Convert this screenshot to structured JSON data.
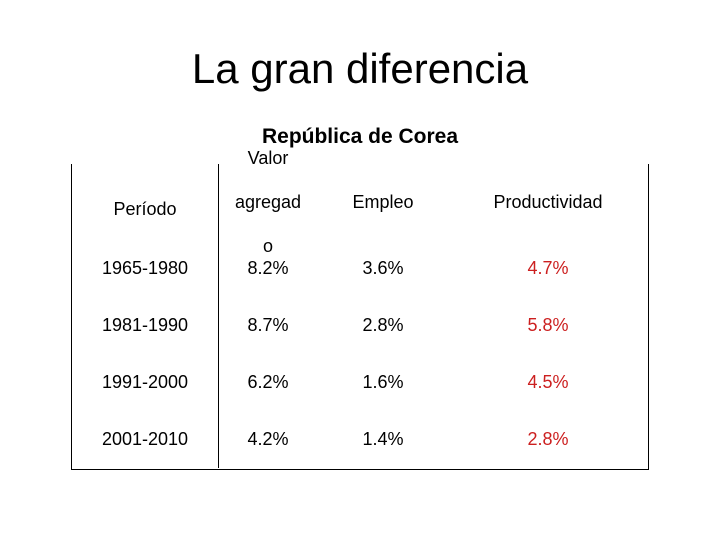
{
  "slide": {
    "title": "La gran diferencia",
    "subtitle": "República de Corea"
  },
  "table": {
    "headers": [
      "Período",
      "Valor agregad o",
      "Empleo",
      "Productividad"
    ],
    "rows": [
      [
        "1965-1980",
        "8.2%",
        "3.6%",
        "4.7%"
      ],
      [
        "1981-1990",
        "8.7%",
        "2.8%",
        "5.8%"
      ],
      [
        "1991-2000",
        "6.2%",
        "1.6%",
        "4.5%"
      ],
      [
        "2001-2010",
        "4.2%",
        "1.4%",
        "2.8%"
      ]
    ]
  },
  "colors": {
    "productivity_text": "#cc1f1f",
    "text": "#000000"
  }
}
